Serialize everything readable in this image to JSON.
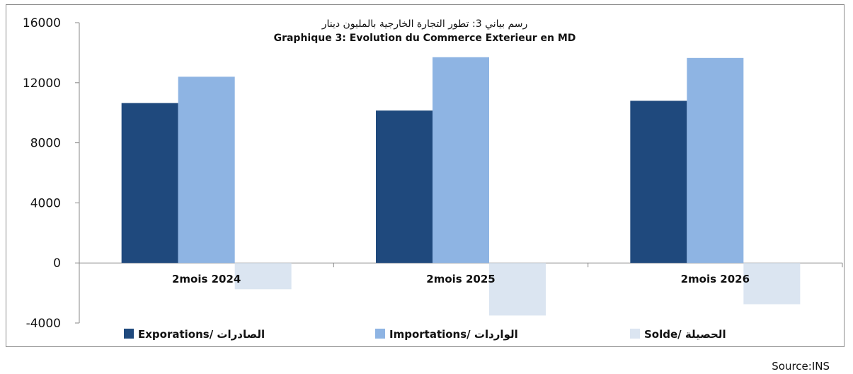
{
  "chart_data": {
    "type": "bar",
    "title_ar": "رسم بياني 3: تطور التجارة الخارجية بالمليون دينار",
    "title": "Graphique 3: Evolution du Commerce Exterieur en MD",
    "categories": [
      "2mois 2024",
      "2mois 2025",
      "2mois 2026"
    ],
    "series": [
      {
        "name": "Exporations/  الصادرات",
        "color": "#1f497d",
        "values": [
          10650,
          10150,
          10800
        ]
      },
      {
        "name": "Importations/ الواردات",
        "color": "#8eb4e3",
        "values": [
          12400,
          13700,
          13650
        ]
      },
      {
        "name": "Solde/ الحصيلة",
        "color": "#dbe5f1",
        "values": [
          -1750,
          -3500,
          -2750
        ]
      }
    ],
    "ylim": [
      -4000,
      16000
    ],
    "yticks": [
      -4000,
      0,
      4000,
      8000,
      12000,
      16000
    ],
    "grid": false,
    "legend": "bottom"
  },
  "source": "Source:INS"
}
